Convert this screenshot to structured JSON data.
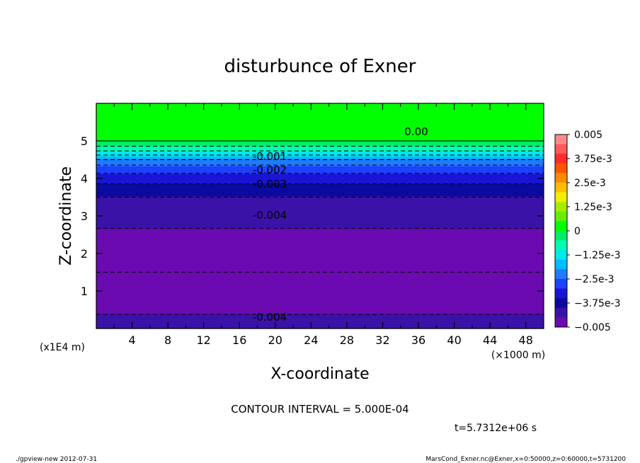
{
  "chart_data": {
    "type": "heatmap",
    "title": "disturbunce of Exner",
    "xlabel": "X-coordinate",
    "ylabel": "Z-coordinate",
    "x_unit_label": "(×1000 m)",
    "y_unit_label": "(x1E4 m)",
    "x_range": [
      0,
      50
    ],
    "y_range": [
      0,
      6
    ],
    "x_ticks": [
      4,
      8,
      12,
      16,
      20,
      24,
      28,
      32,
      36,
      40,
      44,
      48
    ],
    "y_ticks": [
      1,
      2,
      3,
      4,
      5
    ],
    "colorbar": {
      "min": -0.005,
      "max": 0.005,
      "labels": [
        "0.005",
        "3.75e-3",
        "2.5e-3",
        "1.25e-3",
        "0",
        "-1.25e-3",
        "-2.5e-3",
        "-3.75e-3",
        "-0.005"
      ],
      "colors": [
        "#ff8a8a",
        "#ff5a5a",
        "#ff2a2a",
        "#ff5500",
        "#ff8c00",
        "#ffbf00",
        "#f0f000",
        "#a6ee00",
        "#66ee00",
        "#00ff00",
        "#00ee66",
        "#00ffb4",
        "#00e8e8",
        "#00bbff",
        "#1f7bff",
        "#1e40ff",
        "#1a14d4",
        "#0a0aa0",
        "#3a12a8",
        "#6a0ab0"
      ]
    },
    "profile_z": [
      0.0,
      0.5,
      1.0,
      1.5,
      2.0,
      2.5,
      3.0,
      3.5,
      4.0,
      4.4,
      4.6,
      4.8,
      5.0,
      6.0
    ],
    "profile_value": [
      -0.0042,
      -0.0046,
      -0.0049,
      -0.005,
      -0.0048,
      -0.0046,
      -0.0043,
      -0.004,
      -0.0033,
      -0.0024,
      -0.0016,
      -0.0007,
      0.0,
      0.0003
    ],
    "contour_labels": [
      "0.00",
      "-0.001",
      "-0.002",
      "-0.003",
      "-0.004",
      "-0.004"
    ],
    "contour_interval_text": "CONTOUR INTERVAL = 5.000E-04",
    "time_text": "t=5.7312e+06 s"
  },
  "footer": {
    "left": "./gpview-new  2012-07-31",
    "right": "MarsCond_Exner.nc@Exner,x=0:50000,z=0:60000,t=5731200"
  }
}
